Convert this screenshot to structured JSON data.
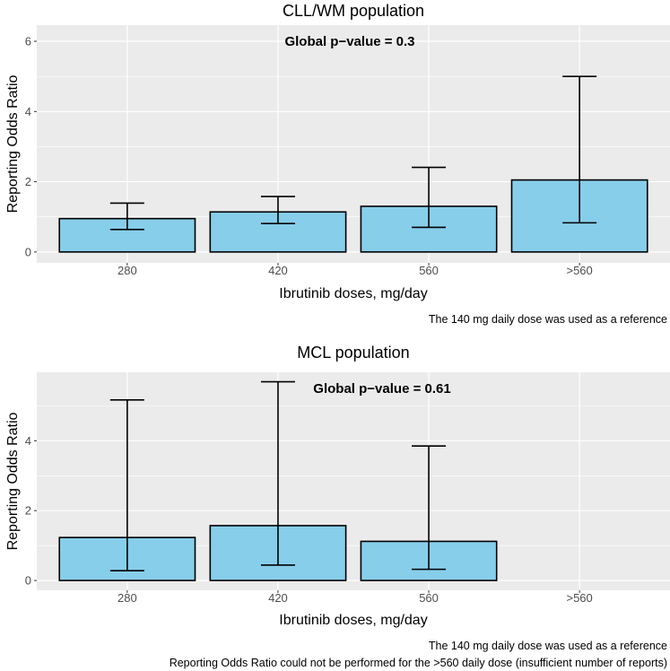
{
  "chart_data": [
    {
      "type": "bar",
      "title": "CLL/WM population",
      "annotation": "Global p−value = 0.3",
      "xlabel": "Ibrutinib doses, mg/day",
      "ylabel": "Reporting Odds Ratio",
      "categories": [
        "280",
        "420",
        "560",
        ">560"
      ],
      "values": [
        0.95,
        1.14,
        1.3,
        2.05
      ],
      "ci_lower": [
        0.64,
        0.81,
        0.7,
        0.83
      ],
      "ci_upper": [
        1.39,
        1.58,
        2.41,
        5.0
      ],
      "yticks": [
        0,
        2,
        4,
        6
      ],
      "ylim": [
        -0.31,
        6.46
      ],
      "grid": true,
      "captions": [
        "The 140 mg daily dose was used as a reference"
      ]
    },
    {
      "type": "bar",
      "title": "MCL population",
      "annotation": "Global p−value = 0.61",
      "xlabel": "Ibrutinib doses, mg/day",
      "ylabel": "Reporting Odds Ratio",
      "categories": [
        "280",
        "420",
        "560",
        ">560"
      ],
      "values": [
        1.23,
        1.57,
        1.12,
        null
      ],
      "ci_lower": [
        0.28,
        0.44,
        0.32,
        null
      ],
      "ci_upper": [
        5.17,
        5.69,
        3.85,
        null
      ],
      "yticks": [
        0,
        2,
        4
      ],
      "ylim": [
        -0.28,
        5.96
      ],
      "grid": true,
      "captions": [
        "The 140 mg daily dose was used as a reference",
        "Reporting Odds Ratio could not be performed for the >560 daily dose (insufficient number of reports)"
      ]
    }
  ],
  "colors": {
    "bar": "#87CEEB",
    "panel": "#EBEBEB",
    "grid": "#FFFFFF",
    "text": "#000000",
    "tick": "#4D4D4D"
  }
}
